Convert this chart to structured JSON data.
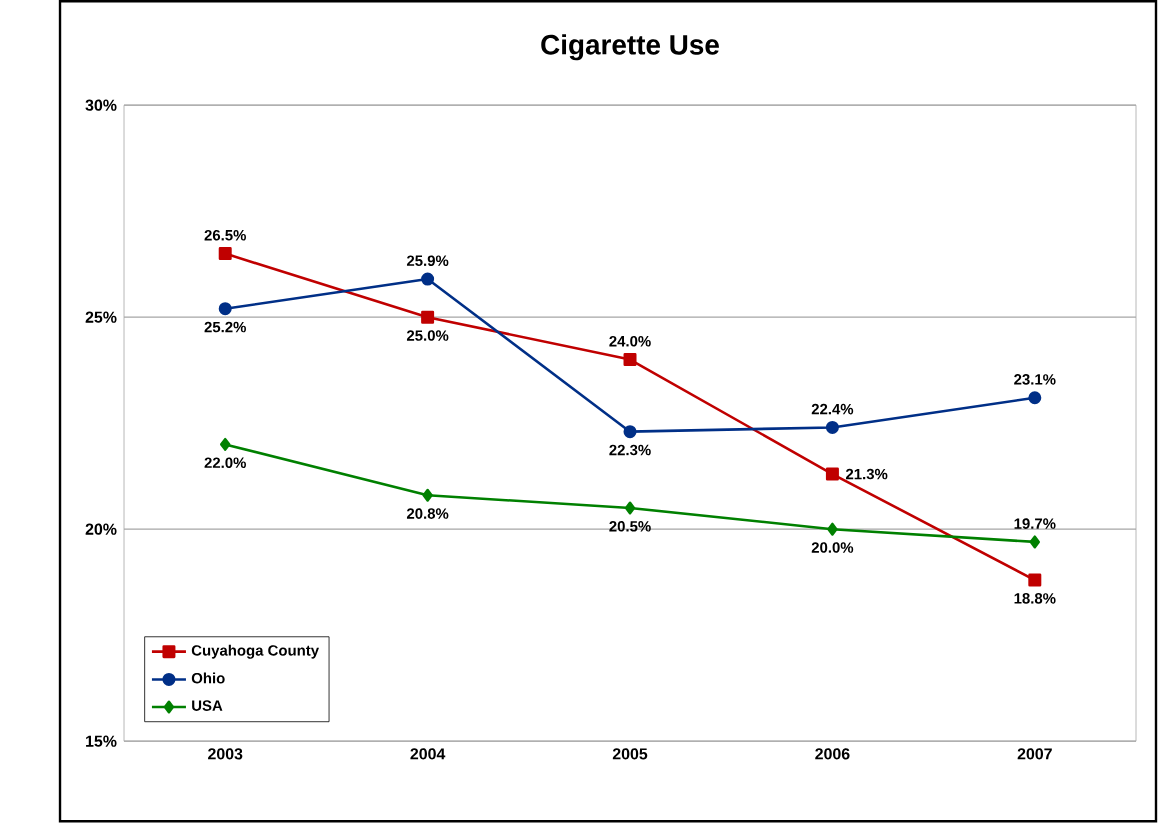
{
  "chart_data": {
    "type": "line",
    "title": "Cigarette Use",
    "categories": [
      "2003",
      "2004",
      "2005",
      "2006",
      "2007"
    ],
    "series": [
      {
        "name": "Cuyahoga County",
        "color": "#c00000",
        "marker": "square",
        "values": [
          26.5,
          25.0,
          24.0,
          21.3,
          18.8
        ],
        "value_labels": [
          "26.5%",
          "25.0%",
          "24.0%",
          "21.3%",
          "18.8%"
        ]
      },
      {
        "name": "Ohio",
        "color": "#002f87",
        "marker": "circle",
        "values": [
          25.2,
          25.9,
          22.3,
          22.4,
          23.1
        ],
        "value_labels": [
          "25.2%",
          "25.9%",
          "22.3%",
          "22.4%",
          "23.1%"
        ]
      },
      {
        "name": "USA",
        "color": "#008000",
        "marker": "diamond",
        "values": [
          22.0,
          20.8,
          20.5,
          20.0,
          19.7
        ],
        "value_labels": [
          "22.0%",
          "20.8%",
          "20.5%",
          "20.0%",
          "19.7%"
        ]
      }
    ],
    "ylim": [
      15,
      30
    ],
    "yticks": [
      {
        "value": 15,
        "label": "15%"
      },
      {
        "value": 20,
        "label": "20%"
      },
      {
        "value": 25,
        "label": "25%"
      },
      {
        "value": 30,
        "label": "30%"
      }
    ],
    "grid": "y",
    "legend": "bottom left",
    "line_style": "solid"
  }
}
